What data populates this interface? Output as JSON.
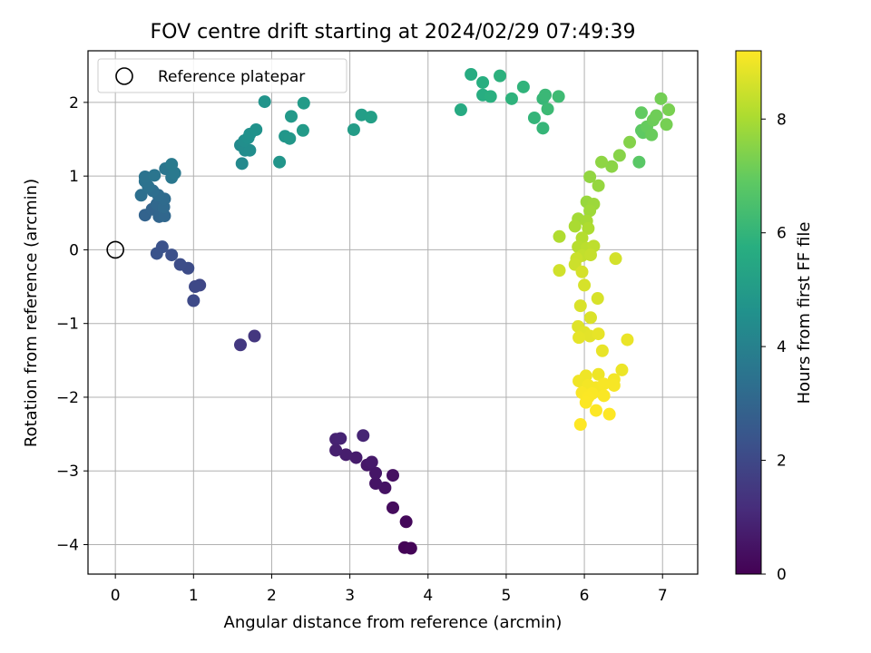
{
  "chart_data": {
    "type": "scatter",
    "title": "FOV centre drift starting at 2024/02/29 07:49:39",
    "xlabel": "Angular distance from reference (arcmin)",
    "ylabel": "Rotation from reference (arcmin)",
    "xlim": [
      -0.35,
      7.45
    ],
    "ylim": [
      -4.4,
      2.7
    ],
    "xticks": [
      "0",
      "1",
      "2",
      "3",
      "4",
      "5",
      "6",
      "7"
    ],
    "yticks": [
      "2",
      "1",
      "0",
      "−1",
      "−2",
      "−3",
      "−4"
    ],
    "grid": true,
    "legend": {
      "placement": "top-left",
      "label": "Reference platepar"
    },
    "reference_point": {
      "x": 0,
      "y": 0
    },
    "colorbar": {
      "label": "Hours from first FF file",
      "colormap": "viridis",
      "range": [
        0,
        9.2
      ],
      "ticks": [
        "0",
        "2",
        "4",
        "6",
        "8"
      ]
    },
    "points": [
      {
        "x": 3.7,
        "y": -4.04,
        "h": 0.05
      },
      {
        "x": 3.78,
        "y": -4.05,
        "h": 0.1
      },
      {
        "x": 3.72,
        "y": -3.69,
        "h": 0.18
      },
      {
        "x": 3.55,
        "y": -3.5,
        "h": 0.28
      },
      {
        "x": 3.55,
        "y": -3.06,
        "h": 0.38
      },
      {
        "x": 3.45,
        "y": -3.23,
        "h": 0.45
      },
      {
        "x": 3.33,
        "y": -3.17,
        "h": 0.5
      },
      {
        "x": 3.33,
        "y": -3.03,
        "h": 0.55
      },
      {
        "x": 3.22,
        "y": -2.92,
        "h": 0.6
      },
      {
        "x": 3.28,
        "y": -2.88,
        "h": 0.65
      },
      {
        "x": 3.08,
        "y": -2.82,
        "h": 0.7
      },
      {
        "x": 2.95,
        "y": -2.78,
        "h": 0.75
      },
      {
        "x": 2.82,
        "y": -2.72,
        "h": 0.8
      },
      {
        "x": 2.82,
        "y": -2.57,
        "h": 0.85
      },
      {
        "x": 2.88,
        "y": -2.56,
        "h": 0.9
      },
      {
        "x": 3.17,
        "y": -2.52,
        "h": 0.95
      },
      {
        "x": 1.78,
        "y": -1.17,
        "h": 1.45
      },
      {
        "x": 1.6,
        "y": -1.29,
        "h": 1.5
      },
      {
        "x": 1.08,
        "y": -0.48,
        "h": 1.95
      },
      {
        "x": 1.02,
        "y": -0.5,
        "h": 2.0
      },
      {
        "x": 1.0,
        "y": -0.69,
        "h": 2.05
      },
      {
        "x": 0.93,
        "y": -0.25,
        "h": 2.1
      },
      {
        "x": 0.83,
        "y": -0.2,
        "h": 2.15
      },
      {
        "x": 0.72,
        "y": -0.07,
        "h": 2.25
      },
      {
        "x": 0.6,
        "y": 0.04,
        "h": 2.3
      },
      {
        "x": 0.53,
        "y": -0.05,
        "h": 2.35
      },
      {
        "x": 0.38,
        "y": 0.47,
        "h": 2.9
      },
      {
        "x": 0.47,
        "y": 0.55,
        "h": 2.95
      },
      {
        "x": 0.56,
        "y": 0.45,
        "h": 3.0
      },
      {
        "x": 0.63,
        "y": 0.46,
        "h": 3.05
      },
      {
        "x": 0.53,
        "y": 0.62,
        "h": 3.1
      },
      {
        "x": 0.62,
        "y": 0.58,
        "h": 3.15
      },
      {
        "x": 0.63,
        "y": 0.69,
        "h": 3.2
      },
      {
        "x": 0.55,
        "y": 0.74,
        "h": 3.25
      },
      {
        "x": 0.48,
        "y": 0.8,
        "h": 3.3
      },
      {
        "x": 0.33,
        "y": 0.74,
        "h": 3.35
      },
      {
        "x": 0.42,
        "y": 0.86,
        "h": 3.4
      },
      {
        "x": 0.38,
        "y": 0.93,
        "h": 3.45
      },
      {
        "x": 0.38,
        "y": 0.99,
        "h": 3.5
      },
      {
        "x": 0.5,
        "y": 1.01,
        "h": 3.55
      },
      {
        "x": 0.64,
        "y": 1.1,
        "h": 3.6
      },
      {
        "x": 0.72,
        "y": 0.98,
        "h": 3.65
      },
      {
        "x": 0.76,
        "y": 1.04,
        "h": 3.7
      },
      {
        "x": 0.72,
        "y": 1.16,
        "h": 3.75
      },
      {
        "x": 1.62,
        "y": 1.17,
        "h": 4.3
      },
      {
        "x": 1.6,
        "y": 1.42,
        "h": 4.35
      },
      {
        "x": 1.66,
        "y": 1.35,
        "h": 4.4
      },
      {
        "x": 1.72,
        "y": 1.35,
        "h": 4.45
      },
      {
        "x": 1.65,
        "y": 1.48,
        "h": 4.5
      },
      {
        "x": 1.7,
        "y": 1.52,
        "h": 4.55
      },
      {
        "x": 1.72,
        "y": 1.57,
        "h": 4.6
      },
      {
        "x": 1.8,
        "y": 1.63,
        "h": 4.65
      },
      {
        "x": 1.91,
        "y": 2.01,
        "h": 4.7
      },
      {
        "x": 2.1,
        "y": 1.19,
        "h": 4.75
      },
      {
        "x": 2.17,
        "y": 1.54,
        "h": 4.8
      },
      {
        "x": 2.23,
        "y": 1.51,
        "h": 4.85
      },
      {
        "x": 2.25,
        "y": 1.81,
        "h": 4.9
      },
      {
        "x": 2.4,
        "y": 1.62,
        "h": 4.95
      },
      {
        "x": 2.41,
        "y": 1.99,
        "h": 5.0
      },
      {
        "x": 3.05,
        "y": 1.63,
        "h": 5.05
      },
      {
        "x": 3.15,
        "y": 1.83,
        "h": 5.1
      },
      {
        "x": 3.27,
        "y": 1.8,
        "h": 5.15
      },
      {
        "x": 4.42,
        "y": 1.9,
        "h": 5.6
      },
      {
        "x": 4.55,
        "y": 2.38,
        "h": 5.65
      },
      {
        "x": 4.7,
        "y": 2.1,
        "h": 5.7
      },
      {
        "x": 4.7,
        "y": 2.27,
        "h": 5.75
      },
      {
        "x": 4.8,
        "y": 2.08,
        "h": 5.8
      },
      {
        "x": 4.92,
        "y": 2.36,
        "h": 5.85
      },
      {
        "x": 5.07,
        "y": 2.05,
        "h": 5.9
      },
      {
        "x": 5.22,
        "y": 2.21,
        "h": 5.95
      },
      {
        "x": 5.36,
        "y": 1.79,
        "h": 6.0
      },
      {
        "x": 5.47,
        "y": 1.65,
        "h": 6.05
      },
      {
        "x": 5.47,
        "y": 2.05,
        "h": 6.1
      },
      {
        "x": 5.5,
        "y": 2.1,
        "h": 6.15
      },
      {
        "x": 5.53,
        "y": 1.91,
        "h": 6.2
      },
      {
        "x": 5.67,
        "y": 2.08,
        "h": 6.25
      },
      {
        "x": 6.7,
        "y": 1.19,
        "h": 6.8
      },
      {
        "x": 6.73,
        "y": 1.62,
        "h": 6.85
      },
      {
        "x": 6.75,
        "y": 1.59,
        "h": 6.9
      },
      {
        "x": 6.73,
        "y": 1.86,
        "h": 6.95
      },
      {
        "x": 6.8,
        "y": 1.67,
        "h": 7.0
      },
      {
        "x": 6.86,
        "y": 1.56,
        "h": 7.05
      },
      {
        "x": 6.88,
        "y": 1.76,
        "h": 7.1
      },
      {
        "x": 6.92,
        "y": 1.82,
        "h": 7.15
      },
      {
        "x": 6.98,
        "y": 2.05,
        "h": 7.2
      },
      {
        "x": 7.05,
        "y": 1.7,
        "h": 7.25
      },
      {
        "x": 7.08,
        "y": 1.9,
        "h": 7.3
      },
      {
        "x": 6.58,
        "y": 1.46,
        "h": 7.45
      },
      {
        "x": 6.45,
        "y": 1.28,
        "h": 7.5
      },
      {
        "x": 6.35,
        "y": 1.13,
        "h": 7.55
      },
      {
        "x": 6.22,
        "y": 1.19,
        "h": 7.6
      },
      {
        "x": 6.07,
        "y": 0.99,
        "h": 7.65
      },
      {
        "x": 6.18,
        "y": 0.87,
        "h": 7.7
      },
      {
        "x": 6.03,
        "y": 0.65,
        "h": 7.75
      },
      {
        "x": 6.12,
        "y": 0.62,
        "h": 7.8
      },
      {
        "x": 6.07,
        "y": 0.53,
        "h": 7.85
      },
      {
        "x": 5.92,
        "y": 0.42,
        "h": 7.9
      },
      {
        "x": 6.03,
        "y": 0.39,
        "h": 7.95
      },
      {
        "x": 5.88,
        "y": 0.32,
        "h": 8.0
      },
      {
        "x": 6.05,
        "y": 0.29,
        "h": 8.05
      },
      {
        "x": 5.68,
        "y": 0.18,
        "h": 8.1
      },
      {
        "x": 5.97,
        "y": 0.16,
        "h": 8.15
      },
      {
        "x": 5.92,
        "y": 0.04,
        "h": 8.2
      },
      {
        "x": 6.03,
        "y": 0.02,
        "h": 8.25
      },
      {
        "x": 6.12,
        "y": 0.05,
        "h": 8.3
      },
      {
        "x": 5.97,
        "y": -0.08,
        "h": 8.35
      },
      {
        "x": 6.08,
        "y": -0.07,
        "h": 8.4
      },
      {
        "x": 5.9,
        "y": -0.12,
        "h": 8.45
      },
      {
        "x": 5.88,
        "y": -0.2,
        "h": 8.5
      },
      {
        "x": 5.68,
        "y": -0.28,
        "h": 8.55
      },
      {
        "x": 6.4,
        "y": -0.12,
        "h": 8.6
      },
      {
        "x": 5.97,
        "y": -0.3,
        "h": 8.62
      },
      {
        "x": 6.0,
        "y": -0.48,
        "h": 8.64
      },
      {
        "x": 6.17,
        "y": -0.66,
        "h": 8.66
      },
      {
        "x": 5.95,
        "y": -0.76,
        "h": 8.68
      },
      {
        "x": 6.08,
        "y": -0.92,
        "h": 8.7
      },
      {
        "x": 5.92,
        "y": -1.04,
        "h": 8.75
      },
      {
        "x": 6.0,
        "y": -1.12,
        "h": 8.8
      },
      {
        "x": 6.07,
        "y": -1.17,
        "h": 8.82
      },
      {
        "x": 5.93,
        "y": -1.19,
        "h": 8.85
      },
      {
        "x": 6.18,
        "y": -1.14,
        "h": 8.88
      },
      {
        "x": 6.23,
        "y": -1.37,
        "h": 8.9
      },
      {
        "x": 6.55,
        "y": -1.22,
        "h": 8.92
      },
      {
        "x": 6.48,
        "y": -1.63,
        "h": 8.95
      },
      {
        "x": 6.18,
        "y": -1.69,
        "h": 8.98
      },
      {
        "x": 6.02,
        "y": -1.71,
        "h": 9.0
      },
      {
        "x": 5.93,
        "y": -1.78,
        "h": 9.02
      },
      {
        "x": 6.38,
        "y": -1.76,
        "h": 9.05
      },
      {
        "x": 6.05,
        "y": -1.84,
        "h": 9.07
      },
      {
        "x": 6.15,
        "y": -1.87,
        "h": 9.09
      },
      {
        "x": 6.38,
        "y": -1.84,
        "h": 9.1
      },
      {
        "x": 6.25,
        "y": -1.82,
        "h": 9.12
      },
      {
        "x": 5.97,
        "y": -1.94,
        "h": 9.14
      },
      {
        "x": 6.1,
        "y": -1.95,
        "h": 9.15
      },
      {
        "x": 6.25,
        "y": -1.98,
        "h": 9.16
      },
      {
        "x": 6.05,
        "y": -2.0,
        "h": 9.17
      },
      {
        "x": 6.02,
        "y": -2.07,
        "h": 9.18
      },
      {
        "x": 6.15,
        "y": -2.18,
        "h": 9.19
      },
      {
        "x": 6.32,
        "y": -2.23,
        "h": 9.2
      },
      {
        "x": 5.95,
        "y": -2.37,
        "h": 9.2
      }
    ]
  }
}
